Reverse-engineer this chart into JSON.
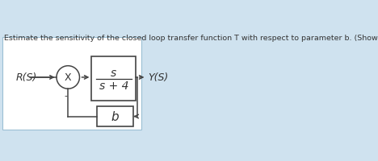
{
  "title": "Estimate the sensitivity of the closed loop transfer function T with respect to parameter b. (Show every step)",
  "title_fontsize": 6.8,
  "bg_outer": "#cfe2ef",
  "bg_inner": "#ffffff",
  "border_color": "#9bbfd4",
  "text_color": "#333333",
  "line_color": "#444444",
  "R_label": "R(S)",
  "Y_label": "Y(S)",
  "tf_num": "s",
  "tf_den": "s + 4",
  "fb_label": "b",
  "X_label": "X",
  "minus_label": "-"
}
